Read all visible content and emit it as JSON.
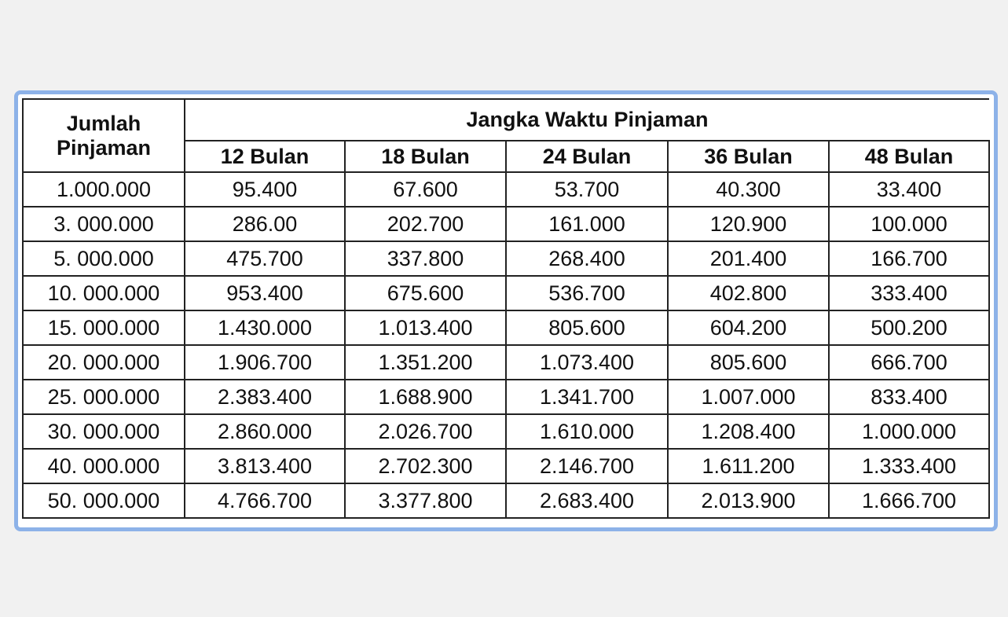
{
  "table": {
    "row_header": "Jumlah Pinjaman",
    "row_header_lines": [
      "Jumlah",
      "Pinjaman"
    ],
    "group_header": "Jangka Waktu Pinjaman",
    "columns": [
      "12 Bulan",
      "18 Bulan",
      "24 Bulan",
      "36 Bulan",
      "48 Bulan"
    ],
    "rows": [
      [
        "1.000.000",
        "95.400",
        "67.600",
        "53.700",
        "40.300",
        "33.400"
      ],
      [
        "3. 000.000",
        "286.00",
        "202.700",
        "161.000",
        "120.900",
        "100.000"
      ],
      [
        "5. 000.000",
        "475.700",
        "337.800",
        "268.400",
        "201.400",
        "166.700"
      ],
      [
        "10. 000.000",
        "953.400",
        "675.600",
        "536.700",
        "402.800",
        "333.400"
      ],
      [
        "15. 000.000",
        "1.430.000",
        "1.013.400",
        "805.600",
        "604.200",
        "500.200"
      ],
      [
        "20. 000.000",
        "1.906.700",
        "1.351.200",
        "1.073.400",
        "805.600",
        "666.700"
      ],
      [
        "25. 000.000",
        "2.383.400",
        "1.688.900",
        "1.341.700",
        "1.007.000",
        "833.400"
      ],
      [
        "30. 000.000",
        "2.860.000",
        "2.026.700",
        "1.610.000",
        "1.208.400",
        "1.000.000"
      ],
      [
        "40. 000.000",
        "3.813.400",
        "2.702.300",
        "2.146.700",
        "1.611.200",
        "1.333.400"
      ],
      [
        "50. 000.000",
        "4.766.700",
        "3.377.800",
        "2.683.400",
        "2.013.900",
        "1.666.700"
      ]
    ]
  },
  "colors": {
    "frame_border": "#8db2e8",
    "background": "#f1f1f1"
  }
}
